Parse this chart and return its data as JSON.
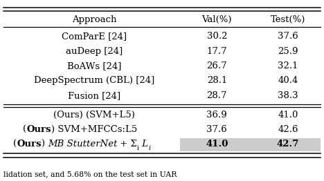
{
  "col_headers": [
    "Approach",
    "Val(%)",
    "Test(%)"
  ],
  "rows": [
    {
      "approach": "ComParE [24]",
      "val": "30.2",
      "test": "37.6",
      "bold": false,
      "highlight": false,
      "row_type": "normal"
    },
    {
      "approach": "auDeep [24]",
      "val": "17.7",
      "test": "25.9",
      "bold": false,
      "highlight": false,
      "row_type": "normal"
    },
    {
      "approach": "BoAWs [24]",
      "val": "26.7",
      "test": "32.1",
      "bold": false,
      "highlight": false,
      "row_type": "normal"
    },
    {
      "approach": "DeepSpectrum (CBL) [24]",
      "val": "28.1",
      "test": "40.4",
      "bold": false,
      "highlight": false,
      "row_type": "normal"
    },
    {
      "approach": "Fusion [24]",
      "val": "28.7",
      "test": "38.3",
      "bold": false,
      "highlight": false,
      "row_type": "normal"
    },
    {
      "approach": "(Ours) (SVM+L5)",
      "val": "36.9",
      "test": "41.0",
      "bold": false,
      "highlight": false,
      "row_type": "ours_normal"
    },
    {
      "approach": "(Ours) SVM+MFCCs:L5",
      "val": "37.6",
      "test": "42.6",
      "bold": false,
      "highlight": false,
      "row_type": "ours_bold"
    },
    {
      "approach": "(Ours) MB StutterNet",
      "val": "41.0",
      "test": "42.7",
      "bold": true,
      "highlight": true,
      "row_type": "ours_italic"
    }
  ],
  "separator_after": [
    4
  ],
  "highlight_color": "#cccccc",
  "bg_color": "#ffffff",
  "font_size": 9.5,
  "figsize": [
    4.68,
    2.62
  ],
  "dpi": 100,
  "bottom_text": "lidation set, and 5.68% on the test set in UAR"
}
